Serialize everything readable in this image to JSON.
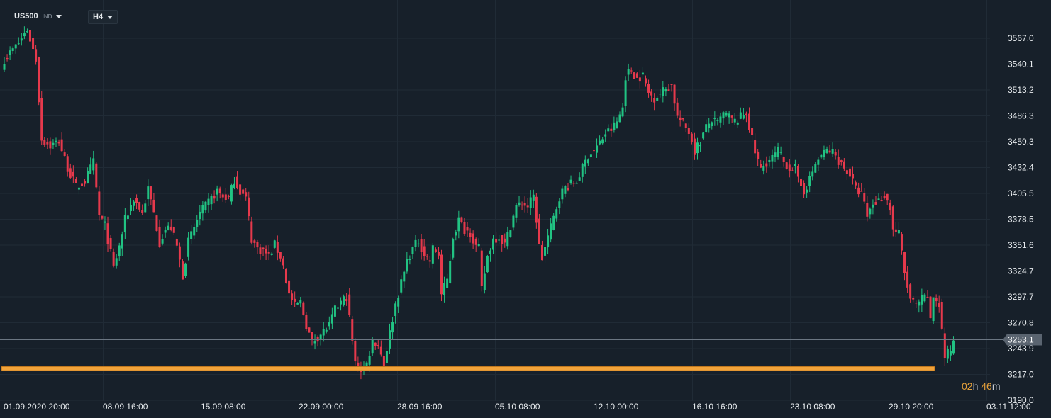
{
  "header": {
    "symbol": "US500",
    "symbol_type": "IND",
    "timeframe": "H4"
  },
  "countdown": {
    "hours": "02",
    "h_unit": "h",
    "minutes": "46",
    "m_unit": "m"
  },
  "price_badge": "3253.1",
  "colors": {
    "background": "#17202a",
    "grid": "#202b36",
    "up": "#21c383",
    "down": "#e6394c",
    "support_line": "#f2a33a",
    "price_line": "#6b7682",
    "price_badge_bg": "#5a6470",
    "axis_text": "#e8ecef"
  },
  "chart_data": {
    "type": "candlestick",
    "symbol": "US500",
    "timeframe": "H4",
    "y_ticks": [
      "3567.0",
      "3540.1",
      "3513.2",
      "3486.3",
      "3459.3",
      "3432.4",
      "3405.5",
      "3378.5",
      "3351.6",
      "3324.7",
      "3297.7",
      "3270.8",
      "3243.9",
      "3217.0",
      "3190.0"
    ],
    "ylim": [
      3190.0,
      3581.0
    ],
    "x_ticks": [
      "01.09.2020  20:00",
      "08.09  16:00",
      "15.09  08:00",
      "22.09  00:00",
      "28.09  16:00",
      "05.10  08:00",
      "12.10  00:00",
      "16.10  16:00",
      "23.10  08:00",
      "29.10  20:00",
      "03.11  12:00"
    ],
    "current_price": 3253.1,
    "horizontal_line": 3223.0,
    "close_path": [
      [
        0,
        3545
      ],
      [
        5,
        3562
      ],
      [
        8,
        3576
      ],
      [
        11,
        3545
      ],
      [
        13,
        3462
      ],
      [
        16,
        3455
      ],
      [
        19,
        3460
      ],
      [
        22,
        3432
      ],
      [
        25,
        3412
      ],
      [
        28,
        3418
      ],
      [
        31,
        3438
      ],
      [
        33,
        3382
      ],
      [
        35,
        3372
      ],
      [
        38,
        3328
      ],
      [
        40,
        3350
      ],
      [
        42,
        3378
      ],
      [
        45,
        3400
      ],
      [
        48,
        3385
      ],
      [
        50,
        3410
      ],
      [
        52,
        3385
      ],
      [
        54,
        3355
      ],
      [
        56,
        3368
      ],
      [
        58,
        3370
      ],
      [
        60,
        3350
      ],
      [
        62,
        3320
      ],
      [
        64,
        3355
      ],
      [
        66,
        3370
      ],
      [
        68,
        3385
      ],
      [
        70,
        3392
      ],
      [
        72,
        3400
      ],
      [
        74,
        3408
      ],
      [
        76,
        3402
      ],
      [
        78,
        3400
      ],
      [
        80,
        3420
      ],
      [
        82,
        3408
      ],
      [
        84,
        3400
      ],
      [
        86,
        3358
      ],
      [
        88,
        3348
      ],
      [
        90,
        3346
      ],
      [
        92,
        3340
      ],
      [
        94,
        3352
      ],
      [
        96,
        3340
      ],
      [
        97,
        3330
      ],
      [
        99,
        3300
      ],
      [
        101,
        3288
      ],
      [
        103,
        3292
      ],
      [
        105,
        3268
      ],
      [
        107,
        3250
      ],
      [
        109,
        3256
      ],
      [
        111,
        3262
      ],
      [
        113,
        3268
      ],
      [
        115,
        3284
      ],
      [
        117,
        3292
      ],
      [
        119,
        3298
      ],
      [
        120,
        3275
      ],
      [
        122,
        3228
      ],
      [
        124,
        3222
      ],
      [
        126,
        3228
      ],
      [
        128,
        3252
      ],
      [
        130,
        3248
      ],
      [
        132,
        3228
      ],
      [
        134,
        3260
      ],
      [
        136,
        3290
      ],
      [
        138,
        3312
      ],
      [
        140,
        3335
      ],
      [
        142,
        3348
      ],
      [
        144,
        3356
      ],
      [
        146,
        3342
      ],
      [
        148,
        3335
      ],
      [
        149,
        3348
      ],
      [
        151,
        3342
      ],
      [
        152,
        3300
      ],
      [
        154,
        3315
      ],
      [
        156,
        3360
      ],
      [
        158,
        3378
      ],
      [
        160,
        3368
      ],
      [
        162,
        3365
      ],
      [
        164,
        3350
      ],
      [
        165,
        3348
      ],
      [
        166,
        3305
      ],
      [
        168,
        3340
      ],
      [
        170,
        3358
      ],
      [
        172,
        3360
      ],
      [
        174,
        3352
      ],
      [
        176,
        3372
      ],
      [
        178,
        3392
      ],
      [
        180,
        3395
      ],
      [
        182,
        3392
      ],
      [
        184,
        3402
      ],
      [
        185,
        3378
      ],
      [
        186,
        3350
      ],
      [
        187,
        3338
      ],
      [
        189,
        3360
      ],
      [
        191,
        3380
      ],
      [
        193,
        3402
      ],
      [
        195,
        3412
      ],
      [
        197,
        3415
      ],
      [
        199,
        3418
      ],
      [
        201,
        3432
      ],
      [
        203,
        3445
      ],
      [
        205,
        3450
      ],
      [
        207,
        3458
      ],
      [
        209,
        3468
      ],
      [
        211,
        3472
      ],
      [
        213,
        3480
      ],
      [
        215,
        3495
      ],
      [
        216,
        3528
      ],
      [
        218,
        3534
      ],
      [
        220,
        3525
      ],
      [
        222,
        3528
      ],
      [
        224,
        3510
      ],
      [
        226,
        3505
      ],
      [
        228,
        3510
      ],
      [
        230,
        3515
      ],
      [
        232,
        3518
      ],
      [
        234,
        3485
      ],
      [
        236,
        3478
      ],
      [
        238,
        3470
      ],
      [
        240,
        3450
      ],
      [
        242,
        3460
      ],
      [
        244,
        3474
      ],
      [
        246,
        3482
      ],
      [
        248,
        3478
      ],
      [
        250,
        3488
      ],
      [
        252,
        3485
      ],
      [
        254,
        3480
      ],
      [
        256,
        3485
      ],
      [
        258,
        3490
      ],
      [
        259,
        3475
      ],
      [
        261,
        3448
      ],
      [
        263,
        3430
      ],
      [
        265,
        3438
      ],
      [
        267,
        3442
      ],
      [
        269,
        3450
      ],
      [
        271,
        3438
      ],
      [
        273,
        3432
      ],
      [
        275,
        3432
      ],
      [
        276,
        3418
      ],
      [
        278,
        3408
      ],
      [
        280,
        3420
      ],
      [
        282,
        3436
      ],
      [
        284,
        3445
      ],
      [
        286,
        3450
      ],
      [
        288,
        3448
      ],
      [
        290,
        3440
      ],
      [
        292,
        3432
      ],
      [
        294,
        3425
      ],
      [
        296,
        3410
      ],
      [
        298,
        3405
      ],
      [
        300,
        3382
      ],
      [
        302,
        3395
      ],
      [
        304,
        3398
      ],
      [
        306,
        3404
      ],
      [
        308,
        3390
      ],
      [
        309,
        3368
      ],
      [
        311,
        3364
      ],
      [
        313,
        3322
      ],
      [
        315,
        3295
      ],
      [
        317,
        3288
      ],
      [
        319,
        3295
      ],
      [
        321,
        3298
      ],
      [
        322,
        3272
      ],
      [
        323,
        3298
      ],
      [
        325,
        3290
      ],
      [
        327,
        3235
      ],
      [
        329,
        3242
      ],
      [
        330,
        3253.1
      ]
    ],
    "x_count": 340
  }
}
